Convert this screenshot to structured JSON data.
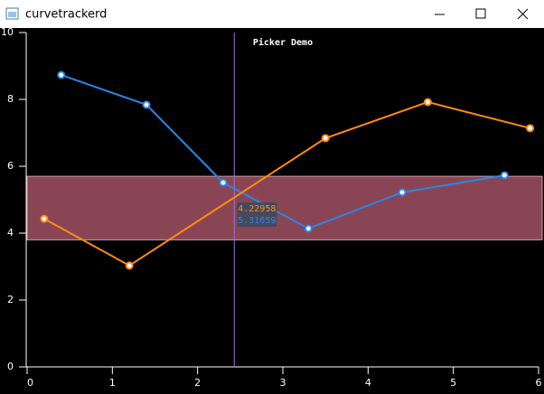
{
  "window": {
    "title": "curvetrackerd"
  },
  "chart_data": {
    "type": "line",
    "title": "Picker Demo",
    "xlim": [
      0,
      6
    ],
    "xticks": [
      0,
      1,
      2,
      3,
      4,
      5,
      6
    ],
    "ylim": [
      0,
      10
    ],
    "yticks": [
      0,
      2,
      4,
      6,
      8,
      10
    ],
    "band": [
      3.8,
      5.7
    ],
    "band_color": "#8a4555",
    "series": [
      {
        "color": "#2a86e8",
        "x": [
          0.4,
          1.4,
          2.3,
          3.3,
          4.4,
          5.6
        ],
        "values": [
          8.73,
          7.84,
          5.51,
          4.14,
          5.22,
          5.73
        ]
      },
      {
        "color": "#ff8a14",
        "x": [
          0.2,
          1.2,
          3.5,
          4.7,
          5.9
        ],
        "values": [
          4.43,
          3.03,
          6.84,
          7.92,
          7.14
        ]
      }
    ],
    "tracker": {
      "x": 2.43,
      "values": [
        4.22958,
        5.31659
      ]
    }
  }
}
